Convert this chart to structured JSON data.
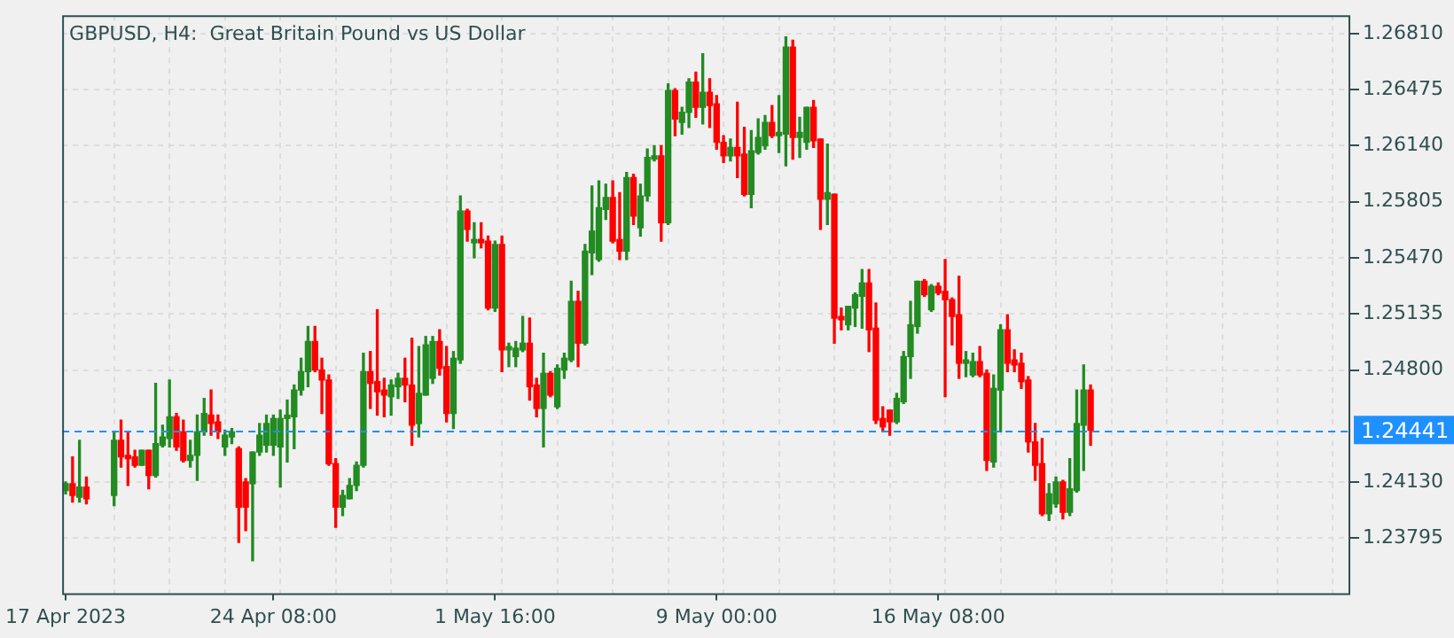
{
  "chart_data": {
    "type": "candlestick",
    "title": "GBPUSD, H4:  Great Britain Pound vs US Dollar",
    "categories": [
      "17 Apr 2023",
      null,
      null,
      null,
      null,
      null,
      null,
      null,
      null,
      null,
      null,
      null,
      null,
      null,
      null,
      null,
      null,
      null,
      null,
      null,
      null,
      null,
      null,
      null,
      null,
      null,
      null,
      null,
      null,
      null,
      "24 Apr 08:00",
      null,
      null,
      null,
      null,
      null,
      null,
      null,
      null,
      null,
      null,
      null,
      null,
      null,
      null,
      null,
      null,
      null,
      null,
      null,
      null,
      null,
      null,
      null,
      null,
      null,
      null,
      null,
      null,
      null,
      null,
      null,
      "1 May 16:00",
      null,
      null,
      null,
      null,
      null,
      null,
      null,
      null,
      null,
      null,
      null,
      null,
      null,
      null,
      null,
      null,
      null,
      null,
      null,
      null,
      null,
      null,
      null,
      null,
      null,
      null,
      null,
      null,
      null,
      null,
      null,
      "9 May 00:00",
      null,
      null,
      null,
      null,
      null,
      null,
      null,
      null,
      null,
      null,
      null,
      null,
      null,
      null,
      null,
      null,
      null,
      null,
      null,
      null,
      null,
      null,
      null,
      null,
      null,
      null,
      null,
      null,
      null,
      null,
      null,
      "16 May 08:00",
      null,
      null,
      null,
      null,
      null,
      null,
      null,
      null,
      null,
      null,
      null,
      null,
      null,
      null,
      null,
      null,
      null,
      null,
      null,
      null,
      null,
      null,
      null,
      null,
      null,
      null,
      null,
      null,
      null,
      null,
      null,
      null,
      null,
      null,
      null,
      null,
      null,
      null,
      null,
      null,
      null,
      null,
      null,
      null,
      null,
      null,
      null,
      null,
      null,
      null,
      null,
      null,
      null,
      null,
      null,
      null,
      null,
      null,
      null
    ],
    "ohlc": [
      [
        1.2408,
        1.2413,
        1.2406,
        1.2412
      ],
      [
        1.2412,
        1.2428,
        1.2401,
        1.2405
      ],
      [
        1.2404,
        1.2438,
        1.2401,
        1.241
      ],
      [
        1.241,
        1.2416,
        1.24,
        1.2403
      ],
      null,
      null,
      null,
      [
        1.2405,
        1.2443,
        1.2399,
        1.2438
      ],
      [
        1.2438,
        1.245,
        1.2422,
        1.2428
      ],
      [
        1.2429,
        1.2443,
        1.2411,
        1.2427
      ],
      [
        1.2428,
        1.2432,
        1.2422,
        1.2423
      ],
      [
        1.2423,
        1.2432,
        1.2423,
        1.2432
      ],
      [
        1.2432,
        1.2432,
        1.2409,
        1.2417
      ],
      [
        1.2417,
        1.2472,
        1.2416,
        1.2436
      ],
      [
        1.2435,
        1.2447,
        1.2434,
        1.244
      ],
      [
        1.2439,
        1.2474,
        1.2434,
        1.2452
      ],
      [
        1.2452,
        1.2454,
        1.2432,
        1.2434
      ],
      [
        1.2443,
        1.245,
        1.2425,
        1.2426
      ],
      [
        1.2426,
        1.2438,
        1.2422,
        1.2429
      ],
      [
        1.2429,
        1.2453,
        1.2414,
        1.2443
      ],
      [
        1.2443,
        1.2463,
        1.2441,
        1.2454
      ],
      [
        1.2453,
        1.2468,
        1.2441,
        1.2448
      ],
      [
        1.2449,
        1.2453,
        1.2439,
        1.2443
      ],
      [
        1.2434,
        1.2444,
        1.2429,
        1.2441
      ],
      [
        1.244,
        1.2445,
        1.2436,
        1.2443
      ],
      [
        1.2433,
        1.2434,
        1.2377,
        1.2398
      ],
      [
        1.2413,
        1.2415,
        1.2384,
        1.2398
      ],
      [
        1.2412,
        1.2431,
        1.2366,
        1.2431
      ],
      [
        1.2431,
        1.2448,
        1.2429,
        1.2441
      ],
      [
        1.2435,
        1.2453,
        1.2431,
        1.2448
      ],
      [
        1.2435,
        1.2453,
        1.2429,
        1.2451
      ],
      [
        1.2434,
        1.2456,
        1.241,
        1.2451
      ],
      [
        1.2451,
        1.2462,
        1.2425,
        1.2453
      ],
      [
        1.2452,
        1.2471,
        1.2433,
        1.2468
      ],
      [
        1.2468,
        1.2487,
        1.2465,
        1.2479
      ],
      [
        1.2479,
        1.2506,
        1.247,
        1.2497
      ],
      [
        1.2497,
        1.2506,
        1.2479,
        1.248
      ],
      [
        1.248,
        1.2487,
        1.2454,
        1.2474
      ],
      [
        1.2474,
        1.2477,
        1.2423,
        1.2424
      ],
      [
        1.2424,
        1.2427,
        1.2386,
        1.2398
      ],
      [
        1.2398,
        1.2408,
        1.2393,
        1.2405
      ],
      [
        1.2403,
        1.2415,
        1.2403,
        1.2411
      ],
      [
        1.2411,
        1.2425,
        1.2408,
        1.2423
      ],
      [
        1.2423,
        1.249,
        1.2422,
        1.2479
      ],
      [
        1.2479,
        1.2491,
        1.2457,
        1.2472
      ],
      [
        1.2473,
        1.2516,
        1.2453,
        1.2467
      ],
      [
        1.2468,
        1.2475,
        1.2452,
        1.2465
      ],
      [
        1.2464,
        1.2474,
        1.2453,
        1.2471
      ],
      [
        1.247,
        1.2478,
        1.2463,
        1.2475
      ],
      [
        1.2475,
        1.2487,
        1.2461,
        1.2471
      ],
      [
        1.2471,
        1.2499,
        1.2435,
        1.2447
      ],
      [
        1.2448,
        1.2494,
        1.244,
        1.2466
      ],
      [
        1.2465,
        1.25,
        1.2465,
        1.2495
      ],
      [
        1.2475,
        1.25,
        1.2472,
        1.2497
      ],
      [
        1.2497,
        1.2504,
        1.2477,
        1.2481
      ],
      [
        1.2482,
        1.2494,
        1.2449,
        1.2454
      ],
      [
        1.2454,
        1.2491,
        1.2445,
        1.2487
      ],
      [
        1.2486,
        1.2584,
        1.2484,
        1.2575
      ],
      [
        1.2575,
        1.2576,
        1.2557,
        1.2564
      ],
      [
        1.2556,
        1.2568,
        1.2547,
        1.2558
      ],
      [
        1.2558,
        1.2568,
        1.2553,
        1.2556
      ],
      [
        1.2557,
        1.256,
        1.2516,
        1.2517
      ],
      [
        1.2517,
        1.2557,
        1.2515,
        1.2555
      ],
      [
        1.2555,
        1.256,
        1.2479,
        1.2492
      ],
      [
        1.2492,
        1.2496,
        1.2482,
        1.2494
      ],
      [
        1.2488,
        1.2497,
        1.2482,
        1.2493
      ],
      [
        1.2492,
        1.2512,
        1.2491,
        1.2496
      ],
      [
        1.2496,
        1.2511,
        1.2462,
        1.247
      ],
      [
        1.2471,
        1.2475,
        1.2452,
        1.2457
      ],
      [
        1.2457,
        1.249,
        1.2434,
        1.2478
      ],
      [
        1.2478,
        1.2479,
        1.2464,
        1.2465
      ],
      [
        1.2458,
        1.2483,
        1.2457,
        1.2481
      ],
      [
        1.248,
        1.249,
        1.2475,
        1.2487
      ],
      [
        1.2486,
        1.2533,
        1.2485,
        1.2521
      ],
      [
        1.2521,
        1.2527,
        1.2482,
        1.2496
      ],
      [
        1.2496,
        1.2555,
        1.2495,
        1.2551
      ],
      [
        1.255,
        1.259,
        1.2537,
        1.2563
      ],
      [
        1.2546,
        1.2593,
        1.2545,
        1.2577
      ],
      [
        1.2576,
        1.2591,
        1.257,
        1.2583
      ],
      [
        1.2583,
        1.2593,
        1.2556,
        1.2557
      ],
      [
        1.2558,
        1.2586,
        1.2546,
        1.2551
      ],
      [
        1.2551,
        1.2598,
        1.2546,
        1.2595
      ],
      [
        1.2595,
        1.2597,
        1.2567,
        1.2572
      ],
      [
        1.2565,
        1.2591,
        1.256,
        1.2584
      ],
      [
        1.2584,
        1.2612,
        1.2581,
        1.2607
      ],
      [
        1.2606,
        1.2614,
        1.2605,
        1.2608
      ],
      [
        1.2608,
        1.2614,
        1.2557,
        1.2568
      ],
      [
        1.2568,
        1.2651,
        1.2567,
        1.2647
      ],
      [
        1.2647,
        1.2648,
        1.262,
        1.263
      ],
      [
        1.2628,
        1.2637,
        1.2621,
        1.2634
      ],
      [
        1.2634,
        1.2654,
        1.2625,
        1.2652
      ],
      [
        1.2652,
        1.2658,
        1.2631,
        1.2637
      ],
      [
        1.2637,
        1.2669,
        1.2627,
        1.2646
      ],
      [
        1.2646,
        1.2654,
        1.2625,
        1.2638
      ],
      [
        1.2639,
        1.2644,
        1.2612,
        1.2616
      ],
      [
        1.2616,
        1.262,
        1.2604,
        1.2608
      ],
      [
        1.2608,
        1.2618,
        1.2605,
        1.2613
      ],
      [
        1.2613,
        1.264,
        1.2595,
        1.2608
      ],
      [
        1.2609,
        1.2625,
        1.2584,
        1.2585
      ],
      [
        1.2585,
        1.2623,
        1.2577,
        1.2611
      ],
      [
        1.261,
        1.263,
        1.2609,
        1.2619
      ],
      [
        1.2614,
        1.2632,
        1.2612,
        1.2628
      ],
      [
        1.2628,
        1.2638,
        1.2619,
        1.262
      ],
      [
        1.262,
        1.2644,
        1.261,
        1.2622
      ],
      [
        1.2621,
        1.2679,
        1.2602,
        1.2673
      ],
      [
        1.2673,
        1.2677,
        1.2606,
        1.2619
      ],
      [
        1.2619,
        1.2631,
        1.2607,
        1.2622
      ],
      [
        1.2616,
        1.2637,
        1.2612,
        1.2637
      ],
      [
        1.2637,
        1.2641,
        1.2613,
        1.2617
      ],
      [
        1.2618,
        1.2618,
        1.2564,
        1.2582
      ],
      [
        1.2582,
        1.2615,
        1.2567,
        1.2586
      ],
      [
        1.2585,
        1.2585,
        1.2496,
        1.2511
      ],
      [
        1.2512,
        1.2517,
        1.2504,
        1.251
      ],
      [
        1.2507,
        1.2518,
        1.2504,
        1.2518
      ],
      [
        1.2517,
        1.2526,
        1.2506,
        1.2525
      ],
      [
        1.2524,
        1.254,
        1.2505,
        1.2532
      ],
      [
        1.2532,
        1.254,
        1.2491,
        1.2504
      ],
      [
        1.2505,
        1.252,
        1.2448,
        1.245
      ],
      [
        1.2451,
        1.2458,
        1.2443,
        1.2446
      ],
      [
        1.2456,
        1.2456,
        1.2441,
        1.2449
      ],
      [
        1.2449,
        1.2466,
        1.2448,
        1.2463
      ],
      [
        1.2461,
        1.2491,
        1.246,
        1.2488
      ],
      [
        1.2488,
        1.2521,
        1.2475,
        1.2507
      ],
      [
        1.2506,
        1.2533,
        1.2502,
        1.2533
      ],
      [
        1.2533,
        1.2534,
        1.2524,
        1.2525
      ],
      [
        1.2516,
        1.2531,
        1.2515,
        1.253
      ],
      [
        1.253,
        1.2532,
        1.2525,
        1.2526
      ],
      [
        1.2527,
        1.2546,
        1.2464,
        1.2522
      ],
      [
        1.2522,
        1.2523,
        1.2495,
        1.2512
      ],
      [
        1.2513,
        1.2536,
        1.2475,
        1.2484
      ],
      [
        1.2484,
        1.2491,
        1.2476,
        1.2486
      ],
      [
        1.2477,
        1.249,
        1.2476,
        1.2485
      ],
      [
        1.2485,
        1.2494,
        1.2476,
        1.2477
      ],
      [
        1.2478,
        1.248,
        1.242,
        1.2426
      ],
      [
        1.2425,
        1.2477,
        1.2422,
        1.2469
      ],
      [
        1.2468,
        1.2507,
        1.2443,
        1.2504
      ],
      [
        1.2504,
        1.2513,
        1.2479,
        1.2484
      ],
      [
        1.2486,
        1.2492,
        1.2479,
        1.2483
      ],
      [
        1.2484,
        1.249,
        1.2469,
        1.2473
      ],
      [
        1.2474,
        1.2476,
        1.2431,
        1.2437
      ],
      [
        1.2437,
        1.2448,
        1.2414,
        1.2423
      ],
      [
        1.2424,
        1.2439,
        1.2393,
        1.2394
      ],
      [
        1.2394,
        1.2412,
        1.239,
        1.2406
      ],
      [
        1.24,
        1.2416,
        1.2398,
        1.2413
      ],
      [
        1.2413,
        1.2414,
        1.2391,
        1.2395
      ],
      [
        1.2395,
        1.2427,
        1.2393,
        1.2409
      ],
      [
        1.2408,
        1.2468,
        1.2407,
        1.2448
      ],
      [
        1.2447,
        1.2483,
        1.242,
        1.2468
      ],
      [
        1.2468,
        1.2471,
        1.2435,
        1.2444
      ],
      null,
      null,
      null,
      null,
      null,
      null,
      null,
      null,
      null,
      null,
      null,
      null,
      null,
      null,
      null,
      null,
      null,
      null,
      null,
      null,
      null,
      null,
      null,
      null,
      null,
      null,
      null,
      null,
      null,
      null,
      null,
      null,
      null,
      null,
      null,
      null,
      null
    ],
    "colors": [
      "#228b22",
      "#ff0000",
      "#228b22",
      "#ff0000",
      null,
      null,
      null,
      "#228b22",
      "#ff0000",
      "#ff0000",
      "#ff0000",
      "#228b22",
      "#ff0000",
      "#228b22",
      "#228b22",
      "#228b22",
      "#ff0000",
      "#ff0000",
      "#228b22",
      "#228b22",
      "#228b22",
      "#ff0000",
      "#ff0000",
      "#228b22",
      "#228b22",
      "#ff0000",
      "#ff0000",
      "#228b22",
      "#228b22",
      "#228b22",
      "#228b22",
      "#228b22",
      "#228b22",
      "#228b22",
      "#228b22",
      "#228b22",
      "#ff0000",
      "#ff0000",
      "#ff0000",
      "#ff0000",
      "#228b22",
      "#228b22",
      "#228b22",
      "#228b22",
      "#ff0000",
      "#ff0000",
      "#ff0000",
      "#228b22",
      "#228b22",
      "#ff0000",
      "#ff0000",
      "#228b22",
      "#228b22",
      "#228b22",
      "#ff0000",
      "#ff0000",
      "#228b22",
      "#228b22",
      "#ff0000",
      "#228b22",
      "#ff0000",
      "#ff0000",
      "#228b22",
      "#ff0000",
      "#228b22",
      "#228b22",
      "#228b22",
      "#ff0000",
      "#ff0000",
      "#228b22",
      "#ff0000",
      "#228b22",
      "#228b22",
      "#228b22",
      "#ff0000",
      "#228b22",
      "#228b22",
      "#228b22",
      "#228b22",
      "#ff0000",
      "#ff0000",
      "#228b22",
      "#ff0000",
      "#228b22",
      "#228b22",
      "#228b22",
      "#ff0000",
      "#228b22",
      "#ff0000",
      "#228b22",
      "#228b22",
      "#ff0000",
      "#228b22",
      "#ff0000",
      "#ff0000",
      "#ff0000",
      "#228b22",
      "#ff0000",
      "#ff0000",
      "#228b22",
      "#228b22",
      "#228b22",
      "#ff0000",
      "#228b22",
      "#228b22",
      "#ff0000",
      "#228b22",
      "#228b22",
      "#ff0000",
      "#ff0000",
      "#228b22",
      "#ff0000",
      "#ff0000",
      "#228b22",
      "#228b22",
      "#228b22",
      "#ff0000",
      "#ff0000",
      "#ff0000",
      "#ff0000",
      "#228b22",
      "#228b22",
      "#228b22",
      "#228b22",
      "#ff0000",
      "#228b22",
      "#ff0000",
      "#ff0000",
      "#ff0000",
      "#ff0000",
      "#228b22",
      "#228b22",
      "#ff0000",
      "#ff0000",
      "#228b22",
      "#228b22",
      "#ff0000",
      "#ff0000",
      "#ff0000",
      "#ff0000",
      "#ff0000",
      "#ff0000",
      "#228b22",
      "#228b22",
      "#ff0000",
      "#228b22",
      "#228b22",
      "#228b22",
      "#ff0000",
      null,
      null,
      null,
      null,
      null,
      null,
      null,
      null,
      null,
      null,
      null,
      null,
      null,
      null,
      null,
      null,
      null,
      null,
      null,
      null,
      null,
      null,
      null,
      null,
      null,
      null,
      null,
      null,
      null,
      null,
      null,
      null,
      null,
      null,
      null,
      null,
      null
    ],
    "ylim": [
      1.23465,
      1.2692
    ],
    "yticks": [
      {
        "value": 1.23795,
        "label": "1.23795"
      },
      {
        "value": 1.2413,
        "label": "1.24130"
      },
      {
        "value": 1.248,
        "label": "1.24800"
      },
      {
        "value": 1.25135,
        "label": "1.25135"
      },
      {
        "value": 1.2547,
        "label": "1.25470"
      },
      {
        "value": 1.25805,
        "label": "1.25805"
      },
      {
        "value": 1.2614,
        "label": "1.26140"
      },
      {
        "value": 1.26475,
        "label": "1.26475"
      },
      {
        "value": 1.2681,
        "label": "1.26810"
      }
    ],
    "ref_lines": [
      {
        "axis": "y",
        "value": 1.24441,
        "label": "1.24441",
        "color": "#1e90ff",
        "line_style": "dashed"
      }
    ],
    "grid": true
  }
}
